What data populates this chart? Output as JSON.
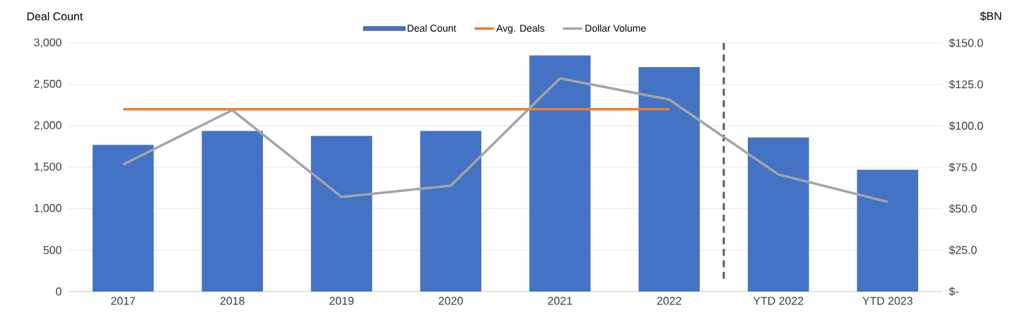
{
  "chart_data": {
    "type": "bar",
    "ylabel": "Deal Count",
    "y2label": "$BN",
    "categories": [
      "2017",
      "2018",
      "2019",
      "2020",
      "2021",
      "2022",
      "YTD 2022",
      "YTD 2023"
    ],
    "series": [
      {
        "name": "Deal Count",
        "color": "#4472c4",
        "values": [
          1770,
          1940,
          1880,
          1940,
          2850,
          2710,
          1860,
          1470
        ]
      },
      {
        "name": "Avg. Deals",
        "type": "line",
        "color": "#ed7d31",
        "values": [
          2200,
          2200,
          2200,
          2200,
          2200,
          2200,
          null,
          null
        ]
      },
      {
        "name": "Dollar Volume",
        "type": "line",
        "color": "#a5a5a5",
        "axis": "y2",
        "values": [
          76.7,
          109.5,
          57.1,
          63.9,
          128.7,
          115.9,
          70.7,
          54.1
        ]
      }
    ],
    "ylim": [
      0,
      3000
    ],
    "yticks": [
      0,
      500,
      {
        "value": 1000,
        "label": "1,000"
      },
      {
        "value": 1500,
        "label": "1,500"
      },
      {
        "value": 2000,
        "label": "2,000"
      },
      {
        "value": 2500,
        "label": "2,500"
      },
      {
        "value": 3000,
        "label": "3,000"
      }
    ],
    "y2lim": [
      0,
      150
    ],
    "y2ticks": [
      {
        "value": 0,
        "label": "$-"
      },
      {
        "value": 25,
        "label": "$25.0"
      },
      {
        "value": 50,
        "label": "$50.0"
      },
      {
        "value": 75,
        "label": "$75.0"
      },
      {
        "value": 100,
        "label": "$100.0"
      },
      {
        "value": 125,
        "label": "$125.0"
      },
      {
        "value": 150,
        "label": "$150.0"
      }
    ],
    "grid": "y",
    "legend": "top"
  }
}
